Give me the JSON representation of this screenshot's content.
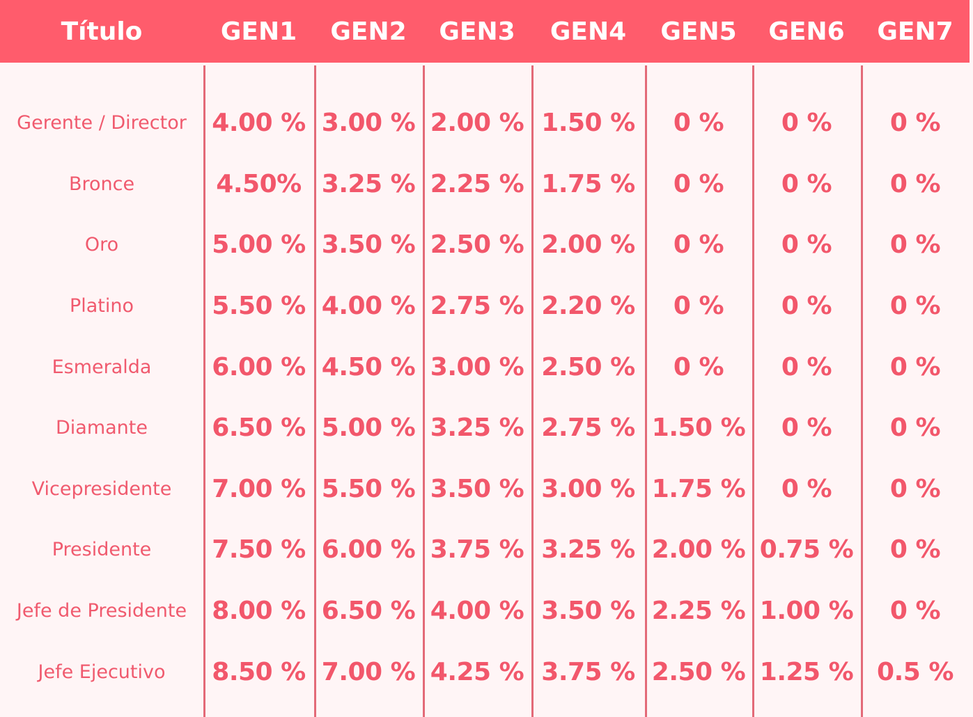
{
  "header": {
    "title_label": "Título",
    "columns": [
      "GEN1",
      "GEN2",
      "GEN3",
      "GEN4",
      "GEN5",
      "GEN6",
      "GEN7"
    ]
  },
  "rows": [
    {
      "title": "Gerente / Director",
      "values": [
        "4.00 %",
        "3.00 %",
        "2.00 %",
        "1.50 %",
        "0 %",
        "0 %",
        "0 %"
      ]
    },
    {
      "title": "Bronce",
      "values": [
        "4.50%",
        "3.25 %",
        "2.25 %",
        "1.75 %",
        "0 %",
        "0 %",
        "0 %"
      ]
    },
    {
      "title": "Oro",
      "values": [
        "5.00 %",
        "3.50 %",
        "2.50 %",
        "2.00 %",
        "0 %",
        "0 %",
        "0 %"
      ]
    },
    {
      "title": "Platino",
      "values": [
        "5.50 %",
        "4.00 %",
        "2.75 %",
        "2.20 %",
        "0 %",
        "0 %",
        "0 %"
      ]
    },
    {
      "title": "Esmeralda",
      "values": [
        "6.00 %",
        "4.50 %",
        "3.00 %",
        "2.50 %",
        "0 %",
        "0 %",
        "0 %"
      ]
    },
    {
      "title": "Diamante",
      "values": [
        "6.50 %",
        "5.00 %",
        "3.25 %",
        "2.75 %",
        "1.50 %",
        "0 %",
        "0 %"
      ]
    },
    {
      "title": "Vicepresidente",
      "values": [
        "7.00 %",
        "5.50 %",
        "3.50 %",
        "3.00 %",
        "1.75 %",
        "0 %",
        "0 %"
      ]
    },
    {
      "title": "Presidente",
      "values": [
        "7.50 %",
        "6.00 %",
        "3.75 %",
        "3.25 %",
        "2.00 %",
        "0.75 %",
        "0 %"
      ]
    },
    {
      "title": "Jefe de Presidente",
      "values": [
        "8.00 %",
        "6.50 %",
        "4.00 %",
        "3.50 %",
        "2.25 %",
        "1.00 %",
        "0 %"
      ]
    },
    {
      "title": "Jefe Ejecutivo",
      "values": [
        "8.50 %",
        "7.00 %",
        "4.25 %",
        "3.75 %",
        "2.50 %",
        "1.25 %",
        "0.5 %"
      ]
    }
  ],
  "colors": {
    "header_bg": "#ff5c6c",
    "header_text": "#ffffff",
    "body_bg": "#fff5f6",
    "text": "#f2576b",
    "separator": "#e36a78"
  }
}
